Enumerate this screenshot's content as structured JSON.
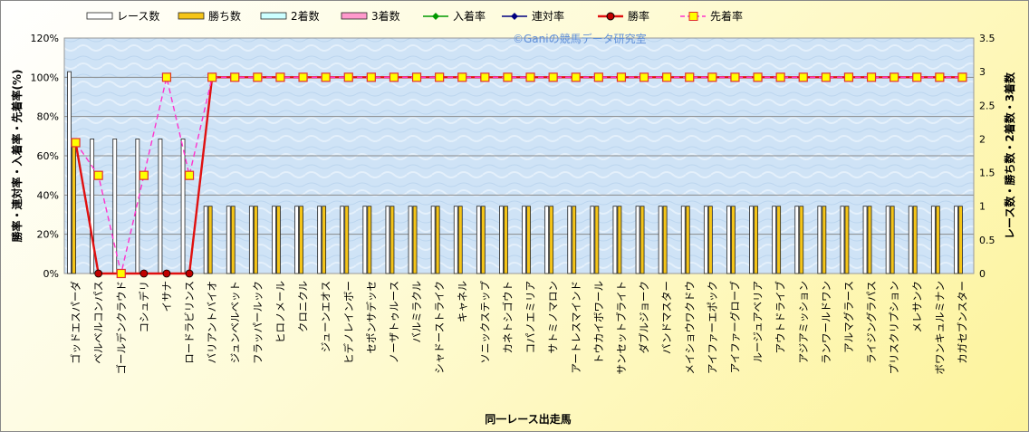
{
  "chart_data": {
    "type": "bar",
    "watermark": "©Ganiの競馬データ研究室",
    "xlabel": "同一レース出走馬",
    "ylabel_left": "勝率・連対率・入着率・先着率(%)",
    "ylabel_right": "レース数・勝ち数・2着数・3着数",
    "ylim_left": [
      0,
      120
    ],
    "yticks_left": [
      "0%",
      "20%",
      "40%",
      "60%",
      "80%",
      "100%",
      "120%"
    ],
    "ylim_right": [
      0,
      3.5
    ],
    "yticks_right": [
      "0",
      "0.5",
      "1",
      "1.5",
      "2",
      "2.5",
      "3",
      "3.5"
    ],
    "grid": true,
    "legend_position": "top",
    "categories": [
      "ゴッドエスパーダ",
      "ベルベルコンパス",
      "ゴールデンクラウド",
      "コシュデリ",
      "イサナ",
      "ロードラビリンス",
      "バリアントバイオ",
      "ジュンベルベット",
      "フラッパールック",
      "ヒロノメール",
      "クロニクル",
      "ジューンエオス",
      "ヒデノレインボー",
      "セポンサデッセ",
      "ノーザトゥルース",
      "バルミラクル",
      "シャドーストライク",
      "キャネル",
      "ソニックステップ",
      "カネトシゴウト",
      "コパノエミリア",
      "サトミノマロン",
      "アートレスマインド",
      "トウカイボワール",
      "サンセットブライト",
      "ダブルジョーク",
      "バンドマスター",
      "メイショウワクドウ",
      "アイファーエポック",
      "アイファーグローブ",
      "ルージュアベリア",
      "アウトドライブ",
      "アジアミッション",
      "ランワールドワン",
      "アルマグラース",
      "ライジングラパス",
      "プリスクリプション",
      "メレサンク",
      "ボワンキュルミナン",
      "カガセブンスター"
    ],
    "series": [
      {
        "name": "レース数",
        "axis": "right",
        "color": "#ffffff",
        "values": [
          3,
          2,
          2,
          2,
          2,
          2,
          1,
          1,
          1,
          1,
          1,
          1,
          1,
          1,
          1,
          1,
          1,
          1,
          1,
          1,
          1,
          1,
          1,
          1,
          1,
          1,
          1,
          1,
          1,
          1,
          1,
          1,
          1,
          1,
          1,
          1,
          1,
          1,
          1,
          1
        ]
      },
      {
        "name": "勝ち数",
        "axis": "right",
        "color": "#f5c518",
        "values": [
          2,
          0,
          0,
          0,
          0,
          0,
          1,
          1,
          1,
          1,
          1,
          1,
          1,
          1,
          1,
          1,
          1,
          1,
          1,
          1,
          1,
          1,
          1,
          1,
          1,
          1,
          1,
          1,
          1,
          1,
          1,
          1,
          1,
          1,
          1,
          1,
          1,
          1,
          1,
          1
        ]
      },
      {
        "name": "2着数",
        "axis": "right",
        "color": "#ccffff",
        "values": [
          0,
          0,
          0,
          0,
          0,
          0,
          0,
          0,
          0,
          0,
          0,
          0,
          0,
          0,
          0,
          0,
          0,
          0,
          0,
          0,
          0,
          0,
          0,
          0,
          0,
          0,
          0,
          0,
          0,
          0,
          0,
          0,
          0,
          0,
          0,
          0,
          0,
          0,
          0,
          0
        ]
      },
      {
        "name": "3着数",
        "axis": "right",
        "color": "#ff99cc",
        "values": [
          0,
          0,
          0,
          0,
          0,
          0,
          0,
          0,
          0,
          0,
          0,
          0,
          0,
          0,
          0,
          0,
          0,
          0,
          0,
          0,
          0,
          0,
          0,
          0,
          0,
          0,
          0,
          0,
          0,
          0,
          0,
          0,
          0,
          0,
          0,
          0,
          0,
          0,
          0,
          0
        ]
      },
      {
        "name": "入着率",
        "axis": "left",
        "color": "#009900",
        "values": [
          66.7,
          0,
          0,
          0,
          0,
          0,
          100,
          100,
          100,
          100,
          100,
          100,
          100,
          100,
          100,
          100,
          100,
          100,
          100,
          100,
          100,
          100,
          100,
          100,
          100,
          100,
          100,
          100,
          100,
          100,
          100,
          100,
          100,
          100,
          100,
          100,
          100,
          100,
          100,
          100
        ]
      },
      {
        "name": "連対率",
        "axis": "left",
        "color": "#000080",
        "values": [
          66.7,
          0,
          0,
          0,
          0,
          0,
          100,
          100,
          100,
          100,
          100,
          100,
          100,
          100,
          100,
          100,
          100,
          100,
          100,
          100,
          100,
          100,
          100,
          100,
          100,
          100,
          100,
          100,
          100,
          100,
          100,
          100,
          100,
          100,
          100,
          100,
          100,
          100,
          100,
          100
        ]
      },
      {
        "name": "勝率",
        "axis": "left",
        "color": "#e01010",
        "values": [
          66.7,
          0,
          0,
          0,
          0,
          0,
          100,
          100,
          100,
          100,
          100,
          100,
          100,
          100,
          100,
          100,
          100,
          100,
          100,
          100,
          100,
          100,
          100,
          100,
          100,
          100,
          100,
          100,
          100,
          100,
          100,
          100,
          100,
          100,
          100,
          100,
          100,
          100,
          100,
          100
        ]
      },
      {
        "name": "先着率",
        "axis": "left",
        "color": "#ff33cc",
        "values": [
          66.7,
          50,
          0,
          50,
          100,
          50,
          100,
          100,
          100,
          100,
          100,
          100,
          100,
          100,
          100,
          100,
          100,
          100,
          100,
          100,
          100,
          100,
          100,
          100,
          100,
          100,
          100,
          100,
          100,
          100,
          100,
          100,
          100,
          100,
          100,
          100,
          100,
          100,
          100,
          100
        ]
      }
    ]
  }
}
